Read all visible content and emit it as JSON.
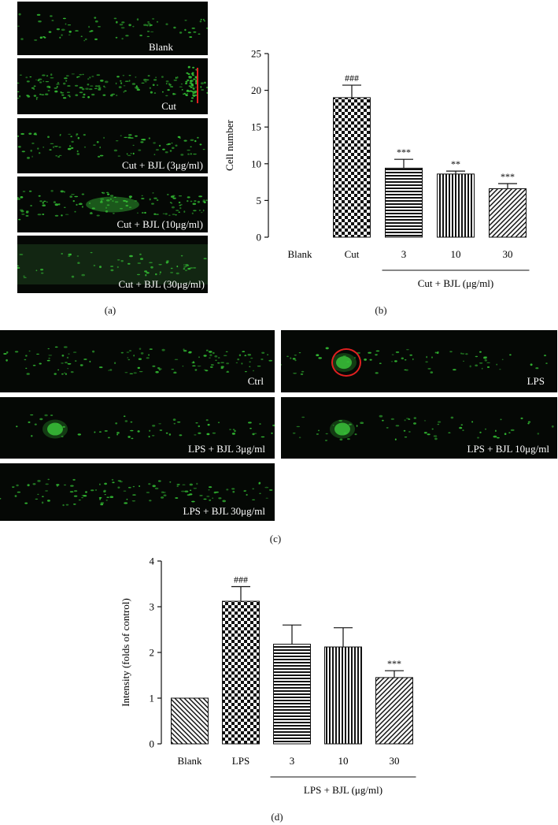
{
  "panel_a": {
    "caption": "(a)",
    "images": [
      {
        "label": "Blank"
      },
      {
        "label": "Cut"
      },
      {
        "label": "Cut + BJL (3μg/ml)"
      },
      {
        "label": "Cut + BJL (10μg/ml)"
      },
      {
        "label": "Cut + BJL (30μg/ml)"
      }
    ]
  },
  "panel_b": {
    "caption": "(b)"
  },
  "panel_c": {
    "caption": "(c)",
    "images": [
      {
        "label": "Ctrl"
      },
      {
        "label": "LPS"
      },
      {
        "label": "LPS + BJL 3μg/ml"
      },
      {
        "label": "LPS + BJL 10μg/ml"
      },
      {
        "label": "LPS + BJL 30μg/ml"
      }
    ]
  },
  "panel_d": {
    "caption": "(d)"
  },
  "colors": {
    "fluorescence": "#35c435",
    "marker_red": "#e02020",
    "background": "#050805"
  },
  "chart_data": [
    {
      "type": "bar",
      "panel": "b",
      "categories": [
        "Blank",
        "Cut",
        "3",
        "10",
        "30"
      ],
      "values": [
        0,
        19.0,
        9.4,
        8.6,
        6.6
      ],
      "errors": [
        0,
        1.7,
        1.2,
        0.4,
        0.7
      ],
      "annotations": [
        "",
        "###",
        "***",
        "**",
        "***"
      ],
      "patterns": [
        "none",
        "checker",
        "horizontal",
        "vertical",
        "diagonal"
      ],
      "ylabel": "Cell number",
      "xlabel": "",
      "group_label": "Cut + BJL (μg/ml)",
      "ylim": [
        0,
        25
      ],
      "yticks": [
        "0",
        "5",
        "10",
        "15",
        "20",
        "25"
      ],
      "grid": false
    },
    {
      "type": "bar",
      "panel": "d",
      "categories": [
        "Blank",
        "LPS",
        "3",
        "10",
        "30"
      ],
      "values": [
        1.0,
        3.12,
        2.18,
        2.12,
        1.45
      ],
      "errors": [
        0,
        0.32,
        0.42,
        0.42,
        0.15
      ],
      "annotations": [
        "",
        "###",
        "",
        "",
        "***"
      ],
      "patterns": [
        "diagonal-back",
        "checker",
        "horizontal",
        "vertical",
        "diagonal"
      ],
      "ylabel": "Intensity (folds of control)",
      "xlabel": "",
      "group_label": "LPS + BJL (μg/ml)",
      "ylim": [
        0,
        4
      ],
      "yticks": [
        "0",
        "1",
        "2",
        "3",
        "4"
      ],
      "grid": false
    }
  ]
}
